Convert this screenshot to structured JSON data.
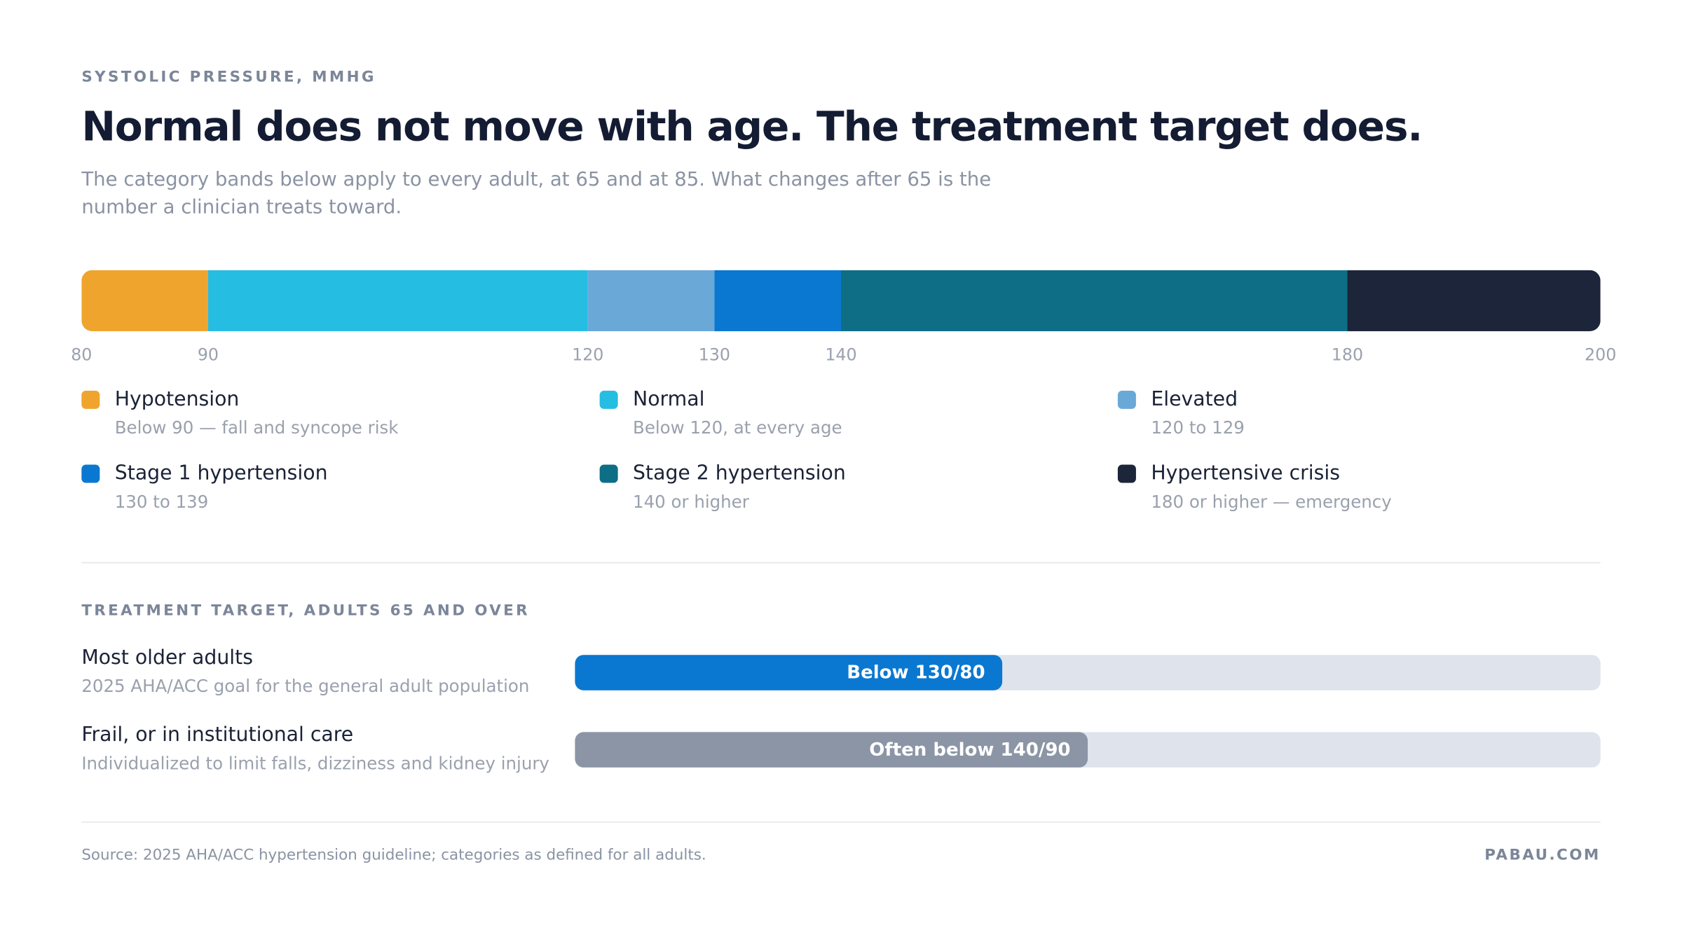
{
  "header": {
    "eyebrow": "SYSTOLIC PRESSURE, MMHG",
    "title": "Normal does not move with age. The treatment target does.",
    "subtitle": "The category bands below apply to every adult, at 65 and at 85. What changes after 65 is the number a clinician treats toward."
  },
  "chart_data": [
    {
      "type": "range-bar",
      "xlim": [
        80,
        200
      ],
      "xticks": [
        80,
        90,
        120,
        130,
        140,
        180,
        200
      ],
      "series": [
        {
          "name": "Hypotension",
          "description": "Below 90 — fall and syncope risk",
          "color": "#efa42d",
          "range": [
            80,
            90
          ]
        },
        {
          "name": "Normal",
          "description": "Below 120, at every age",
          "color": "#26bde2",
          "range": [
            90,
            120
          ]
        },
        {
          "name": "Elevated",
          "description": "120 to 129",
          "color": "#6aa8d8",
          "range": [
            120,
            130
          ]
        },
        {
          "name": "Stage 1 hypertension",
          "description": "130 to 139",
          "color": "#0a78d1",
          "range": [
            130,
            140
          ]
        },
        {
          "name": "Stage 2 hypertension",
          "description": "140 or higher",
          "color": "#0d6e85",
          "range": [
            140,
            180
          ]
        },
        {
          "name": "Hypertensive crisis",
          "description": "180 or higher — emergency",
          "color": "#1c2539",
          "range": [
            180,
            200
          ]
        }
      ]
    },
    {
      "type": "hbar",
      "title": "TREATMENT TARGET, ADULTS 65 AND OVER",
      "xlim": [
        80,
        200
      ],
      "categories": [
        "Most older adults",
        "Frail, or in institutional care"
      ],
      "descriptions": [
        "2025 AHA/ACC goal for the general adult population",
        "Individualized to limit falls, dizziness and kidney injury"
      ],
      "values": [
        130,
        140
      ],
      "value_labels": [
        "Below 130/80",
        "Often below 140/90"
      ],
      "colors": [
        "#0a78d1",
        "#8b95a5"
      ]
    }
  ],
  "footer": {
    "source": "Source: 2025 AHA/ACC hypertension guideline; categories as defined for all adults.",
    "brand": "PABAU.COM"
  }
}
